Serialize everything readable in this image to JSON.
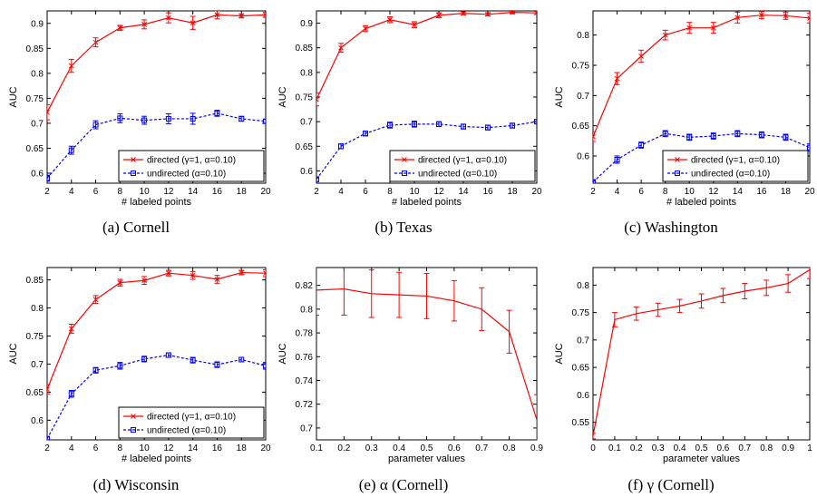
{
  "colors": {
    "directed": "#ff0000",
    "undirected": "#0000ff",
    "axis": "#000000"
  },
  "chart_data": [
    {
      "type": "line",
      "caption": "(a)  Cornell",
      "xlabel": "# labeled points",
      "ylabel": "AUC",
      "xlim": [
        2,
        20
      ],
      "ylim": [
        0.58,
        0.925
      ],
      "x_ticks": [
        2,
        4,
        6,
        8,
        10,
        12,
        14,
        16,
        18,
        20
      ],
      "x_tick_labels": [
        "2",
        "4",
        "6",
        "8",
        "10",
        "12",
        "14",
        "16",
        "18",
        "20"
      ],
      "y_ticks": [
        0.6,
        0.65,
        0.7,
        0.75,
        0.8,
        0.85,
        0.9
      ],
      "y_tick_labels": [
        "0.6",
        "0.65",
        "0.7",
        "0.75",
        "0.8",
        "0.85",
        "0.9"
      ],
      "legend": "bottom-right",
      "series": [
        {
          "name": "directed  (γ=1, α=0.10)",
          "color": "#ff0000",
          "marker": "x",
          "dash": "solid",
          "x": [
            2,
            4,
            6,
            8,
            10,
            12,
            14,
            16,
            18,
            20
          ],
          "y": [
            0.722,
            0.815,
            0.862,
            0.891,
            0.898,
            0.911,
            0.901,
            0.917,
            0.915,
            0.917
          ],
          "err": [
            0.015,
            0.013,
            0.009,
            0.005,
            0.009,
            0.01,
            0.013,
            0.008,
            0.004,
            0.005
          ]
        },
        {
          "name": "undirected (α=0.10)",
          "color": "#0000ff",
          "marker": "square",
          "dash": "dashed",
          "x": [
            2,
            4,
            6,
            8,
            10,
            12,
            14,
            16,
            18,
            20
          ],
          "y": [
            0.59,
            0.646,
            0.697,
            0.71,
            0.706,
            0.709,
            0.709,
            0.72,
            0.709,
            0.704
          ],
          "err": [
            0.006,
            0.008,
            0.008,
            0.009,
            0.008,
            0.01,
            0.011,
            0.006,
            0.005,
            0.004
          ]
        }
      ]
    },
    {
      "type": "line",
      "caption": "(b)  Texas",
      "xlabel": "# labeled points",
      "ylabel": "AUC",
      "xlim": [
        2,
        20
      ],
      "ylim": [
        0.575,
        0.925
      ],
      "x_ticks": [
        2,
        4,
        6,
        8,
        10,
        12,
        14,
        16,
        18,
        20
      ],
      "x_tick_labels": [
        "2",
        "4",
        "6",
        "8",
        "10",
        "12",
        "14",
        "16",
        "18",
        "20"
      ],
      "y_ticks": [
        0.6,
        0.65,
        0.7,
        0.75,
        0.8,
        0.85,
        0.9
      ],
      "y_tick_labels": [
        "0.6",
        "0.65",
        "0.7",
        "0.75",
        "0.8",
        "0.85",
        "0.9"
      ],
      "legend": "bottom-right",
      "series": [
        {
          "name": "directed  (γ=1, α=0.10)",
          "color": "#ff0000",
          "marker": "x",
          "dash": "solid",
          "x": [
            2,
            4,
            6,
            8,
            10,
            12,
            14,
            16,
            18,
            20
          ],
          "y": [
            0.745,
            0.85,
            0.889,
            0.907,
            0.897,
            0.916,
            0.92,
            0.918,
            0.922,
            0.921
          ],
          "err": [
            0.013,
            0.009,
            0.006,
            0.006,
            0.006,
            0.005,
            0.003,
            0.003,
            0.002,
            0.003
          ]
        },
        {
          "name": "undirected (α=0.10)",
          "color": "#0000ff",
          "marker": "square",
          "dash": "dashed",
          "x": [
            2,
            4,
            6,
            8,
            10,
            12,
            14,
            16,
            18,
            20
          ],
          "y": [
            0.583,
            0.65,
            0.676,
            0.693,
            0.695,
            0.695,
            0.69,
            0.688,
            0.692,
            0.7
          ],
          "err": [
            0.005,
            0.005,
            0.005,
            0.006,
            0.006,
            0.005,
            0.005,
            0.005,
            0.005,
            0.004
          ]
        }
      ]
    },
    {
      "type": "line",
      "caption": "(c)  Washington",
      "xlabel": "# labeled points",
      "ylabel": "AUC",
      "xlim": [
        2,
        20
      ],
      "ylim": [
        0.555,
        0.84
      ],
      "x_ticks": [
        2,
        4,
        6,
        8,
        10,
        12,
        14,
        16,
        18,
        20
      ],
      "x_tick_labels": [
        "2",
        "4",
        "6",
        "8",
        "10",
        "12",
        "14",
        "16",
        "18",
        "20"
      ],
      "y_ticks": [
        0.6,
        0.65,
        0.7,
        0.75,
        0.8
      ],
      "y_tick_labels": [
        "0.6",
        "0.65",
        "0.7",
        "0.75",
        "0.8"
      ],
      "legend": "bottom-right",
      "series": [
        {
          "name": "directed  (γ=1, α=0.10)",
          "color": "#ff0000",
          "marker": "x",
          "dash": "solid",
          "x": [
            2,
            4,
            6,
            8,
            10,
            12,
            14,
            16,
            18,
            20
          ],
          "y": [
            0.632,
            0.728,
            0.765,
            0.8,
            0.812,
            0.812,
            0.829,
            0.833,
            0.832,
            0.828
          ],
          "err": [
            0.008,
            0.01,
            0.01,
            0.008,
            0.009,
            0.009,
            0.009,
            0.006,
            0.006,
            0.008
          ]
        },
        {
          "name": "undirected (α=0.10)",
          "color": "#0000ff",
          "marker": "square",
          "dash": "dashed",
          "x": [
            2,
            4,
            6,
            8,
            10,
            12,
            14,
            16,
            18,
            20
          ],
          "y": [
            0.557,
            0.594,
            0.618,
            0.637,
            0.631,
            0.633,
            0.637,
            0.635,
            0.631,
            0.614
          ],
          "err": [
            0.004,
            0.006,
            0.005,
            0.005,
            0.005,
            0.005,
            0.005,
            0.005,
            0.005,
            0.006
          ]
        }
      ]
    },
    {
      "type": "line",
      "caption": "(d)  Wisconsin",
      "xlabel": "# labeled points",
      "ylabel": "AUC",
      "xlim": [
        2,
        20
      ],
      "ylim": [
        0.565,
        0.872
      ],
      "x_ticks": [
        2,
        4,
        6,
        8,
        10,
        12,
        14,
        16,
        18,
        20
      ],
      "x_tick_labels": [
        "2",
        "4",
        "6",
        "8",
        "10",
        "12",
        "14",
        "16",
        "18",
        "20"
      ],
      "y_ticks": [
        0.6,
        0.65,
        0.7,
        0.75,
        0.8,
        0.85
      ],
      "y_tick_labels": [
        "0.6",
        "0.65",
        "0.7",
        "0.75",
        "0.8",
        "0.85"
      ],
      "legend": "bottom-right",
      "series": [
        {
          "name": "directed  (γ=1, α=0.10)",
          "color": "#ff0000",
          "marker": "x",
          "dash": "solid",
          "x": [
            2,
            4,
            6,
            8,
            10,
            12,
            14,
            16,
            18,
            20
          ],
          "y": [
            0.655,
            0.763,
            0.815,
            0.845,
            0.849,
            0.862,
            0.858,
            0.851,
            0.863,
            0.862
          ],
          "err": [
            0.008,
            0.008,
            0.007,
            0.006,
            0.007,
            0.005,
            0.007,
            0.007,
            0.004,
            0.006
          ]
        },
        {
          "name": "undirected (α=0.10)",
          "color": "#0000ff",
          "marker": "square",
          "dash": "dashed",
          "x": [
            2,
            4,
            6,
            8,
            10,
            12,
            14,
            16,
            18,
            20
          ],
          "y": [
            0.567,
            0.647,
            0.689,
            0.697,
            0.709,
            0.716,
            0.707,
            0.699,
            0.708,
            0.697
          ],
          "err": [
            0.004,
            0.006,
            0.005,
            0.006,
            0.005,
            0.004,
            0.005,
            0.005,
            0.004,
            0.006
          ]
        }
      ]
    },
    {
      "type": "line",
      "caption": "(e)  α (Cornell)",
      "xlabel": "parameter values",
      "ylabel": "AUC",
      "xlim": [
        0.1,
        0.9
      ],
      "ylim": [
        0.69,
        0.835
      ],
      "x_ticks": [
        0.1,
        0.2,
        0.3,
        0.4,
        0.5,
        0.6,
        0.7,
        0.8,
        0.9
      ],
      "x_tick_labels": [
        "0.1",
        "0.2",
        "0.3",
        "0.4",
        "0.5",
        "0.6",
        "0.7",
        "0.8",
        "0.9"
      ],
      "y_ticks": [
        0.7,
        0.72,
        0.74,
        0.76,
        0.78,
        0.8,
        0.82
      ],
      "y_tick_labels": [
        "0.7",
        "0.72",
        "0.74",
        "0.76",
        "0.78",
        "0.8",
        "0.82"
      ],
      "legend": "none",
      "series": [
        {
          "color": "#ff0000",
          "marker": "none",
          "dash": "solid",
          "x": [
            0.1,
            0.2,
            0.3,
            0.4,
            0.5,
            0.6,
            0.7,
            0.8,
            0.9
          ],
          "y": [
            0.816,
            0.817,
            0.813,
            0.812,
            0.811,
            0.807,
            0.8,
            0.781,
            0.707
          ],
          "err": [
            0.021,
            0.022,
            0.02,
            0.019,
            0.019,
            0.017,
            0.018,
            0.018,
            0.021
          ]
        }
      ]
    },
    {
      "type": "line",
      "caption": "(f)  γ (Cornell)",
      "xlabel": "parameter values",
      "ylabel": "AUC",
      "xlim": [
        0,
        1
      ],
      "ylim": [
        0.518,
        0.832
      ],
      "x_ticks": [
        0,
        0.1,
        0.2,
        0.3,
        0.4,
        0.5,
        0.6,
        0.7,
        0.8,
        0.9,
        1
      ],
      "x_tick_labels": [
        "0",
        "0.1",
        "0.2",
        "0.3",
        "0.4",
        "0.5",
        "0.6",
        "0.7",
        "0.8",
        "0.9",
        "1"
      ],
      "y_ticks": [
        0.55,
        0.6,
        0.65,
        0.7,
        0.75,
        0.8
      ],
      "y_tick_labels": [
        "0.55",
        "0.6",
        "0.65",
        "0.7",
        "0.75",
        "0.8"
      ],
      "legend": "none",
      "series": [
        {
          "color": "#ff0000",
          "marker": "none",
          "dash": "solid",
          "x": [
            0,
            0.1,
            0.2,
            0.3,
            0.4,
            0.5,
            0.6,
            0.7,
            0.8,
            0.9,
            1
          ],
          "y": [
            0.525,
            0.737,
            0.748,
            0.755,
            0.762,
            0.771,
            0.781,
            0.789,
            0.795,
            0.803,
            0.828
          ],
          "err": [
            0.005,
            0.013,
            0.012,
            0.012,
            0.012,
            0.013,
            0.013,
            0.014,
            0.014,
            0.016,
            0.016
          ]
        }
      ]
    }
  ]
}
